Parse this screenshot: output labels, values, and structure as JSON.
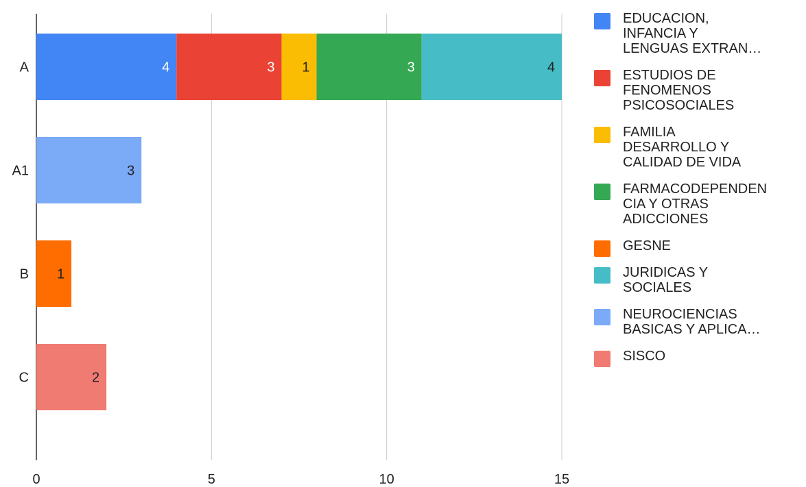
{
  "chart_data": {
    "type": "bar",
    "orientation": "horizontal",
    "stacked": true,
    "categories": [
      "A",
      "A1",
      "B",
      "C"
    ],
    "series": [
      {
        "name": "EDUCACION,\nINFANCIA Y\nLENGUAS EXTRAN…",
        "color": "#4285F4",
        "values": [
          4,
          0,
          0,
          0
        ]
      },
      {
        "name": "ESTUDIOS DE\nFENOMENOS\nPSICOSOCIALES",
        "color": "#EA4335",
        "values": [
          3,
          0,
          0,
          0
        ]
      },
      {
        "name": "FAMILIA\nDESARROLLO Y\nCALIDAD DE VIDA",
        "color": "#FBBC04",
        "values": [
          1,
          0,
          0,
          0
        ]
      },
      {
        "name": "FARMACODEPENDEN\nCIA Y OTRAS\nADICCIONES",
        "color": "#34A853",
        "values": [
          3,
          0,
          0,
          0
        ]
      },
      {
        "name": "GESNE",
        "color": "#FF6D01",
        "values": [
          0,
          0,
          1,
          0
        ]
      },
      {
        "name": "JURIDICAS Y\nSOCIALES",
        "color": "#46BDC6",
        "values": [
          4,
          0,
          0,
          0
        ]
      },
      {
        "name": "NEUROCIENCIAS\nBASICAS Y APLICA…",
        "color": "#7BAAF7",
        "values": [
          0,
          3,
          0,
          0
        ]
      },
      {
        "name": "SISCO",
        "color": "#F07B72",
        "values": [
          0,
          0,
          0,
          2
        ]
      }
    ],
    "data_label_colors": [
      "#ffffff",
      "#ffffff",
      "#222222",
      "#ffffff",
      "#222222",
      "#222222",
      "#222222",
      "#222222"
    ],
    "xlim": [
      0,
      15
    ],
    "xticks": [
      "0",
      "5",
      "10",
      "15"
    ],
    "grid": true,
    "legend_position": "right"
  }
}
